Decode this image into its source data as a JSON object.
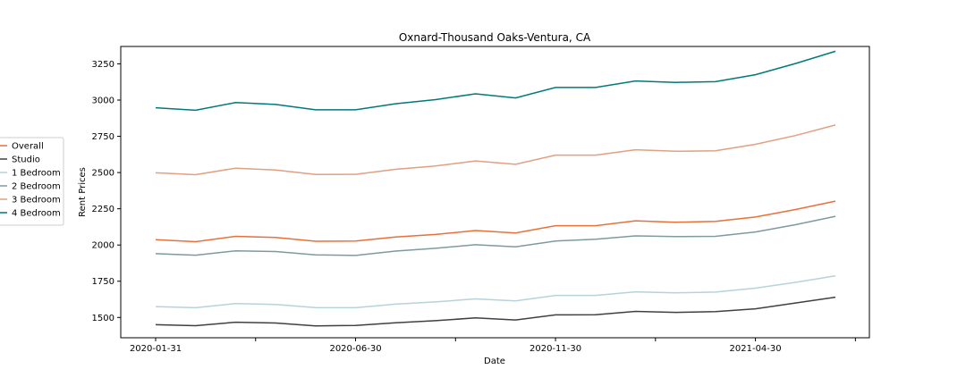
{
  "chart_data": {
    "type": "line",
    "title": "Oxnard-Thousand Oaks-Ventura, CA",
    "xlabel": "Date",
    "ylabel": "Rent Prices",
    "x": [
      "2020-01-31",
      "2020-02-29",
      "2020-03-31",
      "2020-04-30",
      "2020-05-31",
      "2020-06-30",
      "2020-07-31",
      "2020-08-31",
      "2020-09-30",
      "2020-10-31",
      "2020-11-30",
      "2020-12-31",
      "2021-01-31",
      "2021-02-28",
      "2021-03-31",
      "2021-04-30",
      "2021-05-31",
      "2021-06-30"
    ],
    "x_tick_labels": [
      "2020-01-31",
      "",
      "2020-06-30",
      "",
      "2020-11-30",
      "",
      "2021-04-30",
      ""
    ],
    "x_tick_positions": [
      0,
      2.5,
      5,
      7.5,
      10,
      12.5,
      15,
      17.5
    ],
    "ylim": [
      1360,
      3370
    ],
    "y_ticks": [
      1500,
      1750,
      2000,
      2250,
      2500,
      2750,
      3000,
      3250
    ],
    "y_tick_labels": [
      "1500",
      "1750",
      "2000",
      "2250",
      "2500",
      "2750",
      "3000",
      "3250"
    ],
    "grid": false,
    "legend_position": "outside-left",
    "series": [
      {
        "name": "Overall",
        "color": "#e8703a",
        "values": [
          2037,
          2023,
          2060,
          2052,
          2026,
          2027,
          2055,
          2073,
          2100,
          2083,
          2133,
          2133,
          2167,
          2157,
          2163,
          2193,
          2245,
          2303
        ]
      },
      {
        "name": "Studio",
        "color": "#404040",
        "values": [
          1450,
          1443,
          1467,
          1462,
          1442,
          1445,
          1463,
          1478,
          1497,
          1483,
          1518,
          1519,
          1542,
          1535,
          1540,
          1560,
          1600,
          1640
        ]
      },
      {
        "name": "1 Bedroom",
        "color": "#b6d3d9",
        "values": [
          1575,
          1567,
          1596,
          1590,
          1568,
          1567,
          1592,
          1607,
          1628,
          1614,
          1652,
          1652,
          1677,
          1670,
          1675,
          1702,
          1742,
          1787
        ]
      },
      {
        "name": "2 Bedroom",
        "color": "#7d9b9e",
        "values": [
          1940,
          1930,
          1960,
          1955,
          1932,
          1928,
          1958,
          1977,
          2002,
          1987,
          2028,
          2040,
          2063,
          2058,
          2060,
          2090,
          2140,
          2198
        ]
      },
      {
        "name": "3 Bedroom",
        "color": "#e0a081",
        "values": [
          2498,
          2485,
          2530,
          2518,
          2487,
          2488,
          2522,
          2545,
          2580,
          2557,
          2620,
          2620,
          2657,
          2647,
          2650,
          2695,
          2755,
          2828
        ]
      },
      {
        "name": "4 Bedroom",
        "color": "#00797a",
        "values": [
          2947,
          2930,
          2983,
          2970,
          2933,
          2933,
          2975,
          3003,
          3043,
          3015,
          3087,
          3087,
          3132,
          3122,
          3127,
          3175,
          3252,
          3337
        ]
      }
    ]
  }
}
